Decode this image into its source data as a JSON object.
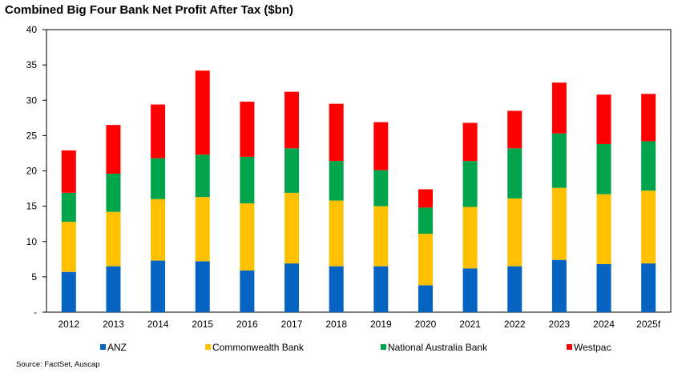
{
  "title": "Combined Big Four Bank Net Profit After Tax ($bn)",
  "source": "Source: FactSet, Auscap",
  "chart_data": {
    "type": "bar",
    "stacked": true,
    "title": "Combined Big Four Bank Net Profit After Tax ($bn)",
    "xlabel": "",
    "ylabel": "",
    "ylim": [
      0,
      40
    ],
    "yticks": [
      0,
      5,
      10,
      15,
      20,
      25,
      30,
      35,
      40
    ],
    "ytick_labels": [
      "-",
      "5",
      "10",
      "15",
      "20",
      "25",
      "30",
      "35",
      "40"
    ],
    "grid": false,
    "legend_position": "bottom",
    "categories": [
      "2012",
      "2013",
      "2014",
      "2015",
      "2016",
      "2017",
      "2018",
      "2019",
      "2020",
      "2021",
      "2022",
      "2023",
      "2024",
      "2025f"
    ],
    "series": [
      {
        "name": "ANZ",
        "color": "#0563C1",
        "values": [
          5.7,
          6.5,
          7.3,
          7.2,
          5.9,
          6.9,
          6.5,
          6.5,
          3.8,
          6.2,
          6.5,
          7.4,
          6.8,
          6.9
        ]
      },
      {
        "name": "Commonwealth Bank",
        "color": "#FFC000",
        "values": [
          7.1,
          7.7,
          8.7,
          9.1,
          9.5,
          10.0,
          9.3,
          8.5,
          7.3,
          8.7,
          9.6,
          10.2,
          9.9,
          10.3
        ]
      },
      {
        "name": "National Australia Bank",
        "color": "#00A44A",
        "values": [
          4.1,
          5.4,
          5.8,
          6.0,
          6.6,
          6.3,
          5.6,
          5.1,
          3.7,
          6.5,
          7.1,
          7.7,
          7.1,
          7.0
        ]
      },
      {
        "name": "Westpac",
        "color": "#FF0000",
        "values": [
          6.0,
          6.9,
          7.6,
          11.9,
          7.8,
          8.0,
          8.1,
          6.8,
          2.6,
          5.4,
          5.3,
          7.2,
          7.0,
          6.7
        ]
      }
    ]
  }
}
